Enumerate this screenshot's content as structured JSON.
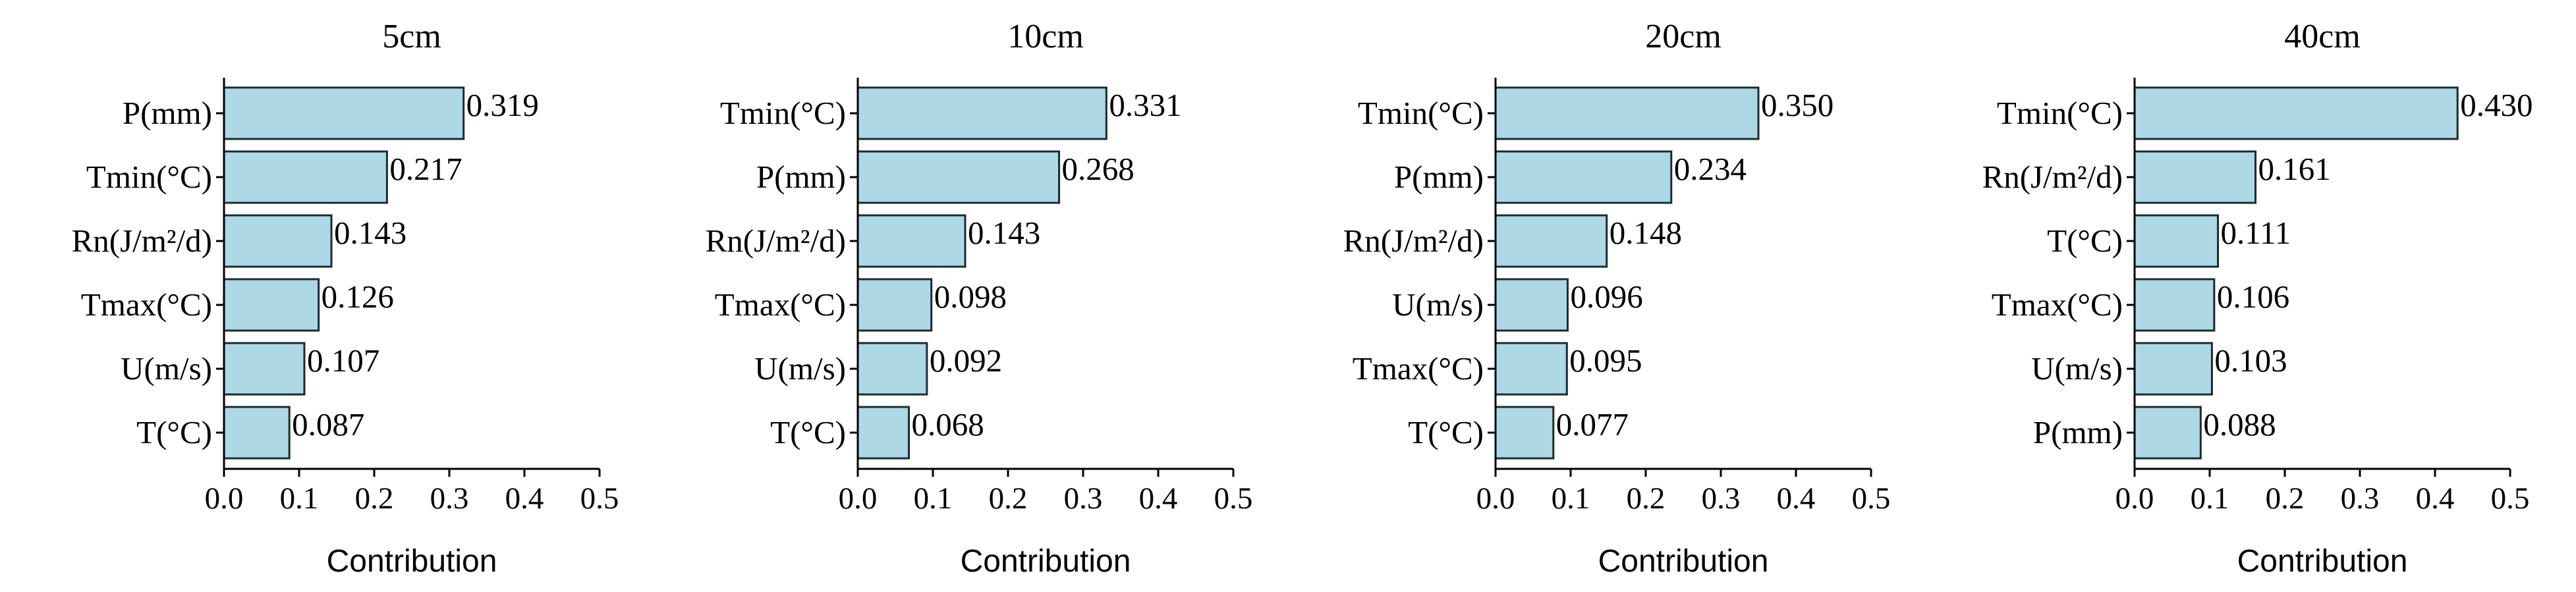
{
  "chart_data": [
    {
      "type": "bar",
      "orientation": "horizontal",
      "title": "5cm",
      "xlabel": "Contribution",
      "xlim": [
        0.0,
        0.5
      ],
      "xticks": [
        "0.0",
        "0.1",
        "0.2",
        "0.3",
        "0.4",
        "0.5"
      ],
      "categories": [
        "P(mm)",
        "Tmin(°C)",
        "Rn(J/m²/d)",
        "Tmax(°C)",
        "U(m/s)",
        "T(°C)"
      ],
      "values": [
        0.319,
        0.217,
        0.143,
        0.126,
        0.107,
        0.087
      ],
      "value_labels": [
        "0.319",
        "0.217",
        "0.143",
        "0.126",
        "0.107",
        "0.087"
      ]
    },
    {
      "type": "bar",
      "orientation": "horizontal",
      "title": "10cm",
      "xlabel": "Contribution",
      "xlim": [
        0.0,
        0.5
      ],
      "xticks": [
        "0.0",
        "0.1",
        "0.2",
        "0.3",
        "0.4",
        "0.5"
      ],
      "categories": [
        "Tmin(°C)",
        "P(mm)",
        "Rn(J/m²/d)",
        "Tmax(°C)",
        "U(m/s)",
        "T(°C)"
      ],
      "values": [
        0.331,
        0.268,
        0.143,
        0.098,
        0.092,
        0.068
      ],
      "value_labels": [
        "0.331",
        "0.268",
        "0.143",
        "0.098",
        "0.092",
        "0.068"
      ]
    },
    {
      "type": "bar",
      "orientation": "horizontal",
      "title": "20cm",
      "xlabel": "Contribution",
      "xlim": [
        0.0,
        0.5
      ],
      "xticks": [
        "0.0",
        "0.1",
        "0.2",
        "0.3",
        "0.4",
        "0.5"
      ],
      "categories": [
        "Tmin(°C)",
        "P(mm)",
        "Rn(J/m²/d)",
        "U(m/s)",
        "Tmax(°C)",
        "T(°C)"
      ],
      "values": [
        0.35,
        0.234,
        0.148,
        0.096,
        0.095,
        0.077
      ],
      "value_labels": [
        "0.350",
        "0.234",
        "0.148",
        "0.096",
        "0.095",
        "0.077"
      ]
    },
    {
      "type": "bar",
      "orientation": "horizontal",
      "title": "40cm",
      "xlabel": "Contribution",
      "xlim": [
        0.0,
        0.5
      ],
      "xticks": [
        "0.0",
        "0.1",
        "0.2",
        "0.3",
        "0.4",
        "0.5"
      ],
      "categories": [
        "Tmin(°C)",
        "Rn(J/m²/d)",
        "T(°C)",
        "Tmax(°C)",
        "U(m/s)",
        "P(mm)"
      ],
      "values": [
        0.43,
        0.161,
        0.111,
        0.106,
        0.103,
        0.088
      ],
      "value_labels": [
        "0.430",
        "0.161",
        "0.111",
        "0.106",
        "0.103",
        "0.088"
      ]
    }
  ],
  "colors": {
    "bar_fill": "#add8e6",
    "bar_edge": "#1e2a2e"
  }
}
